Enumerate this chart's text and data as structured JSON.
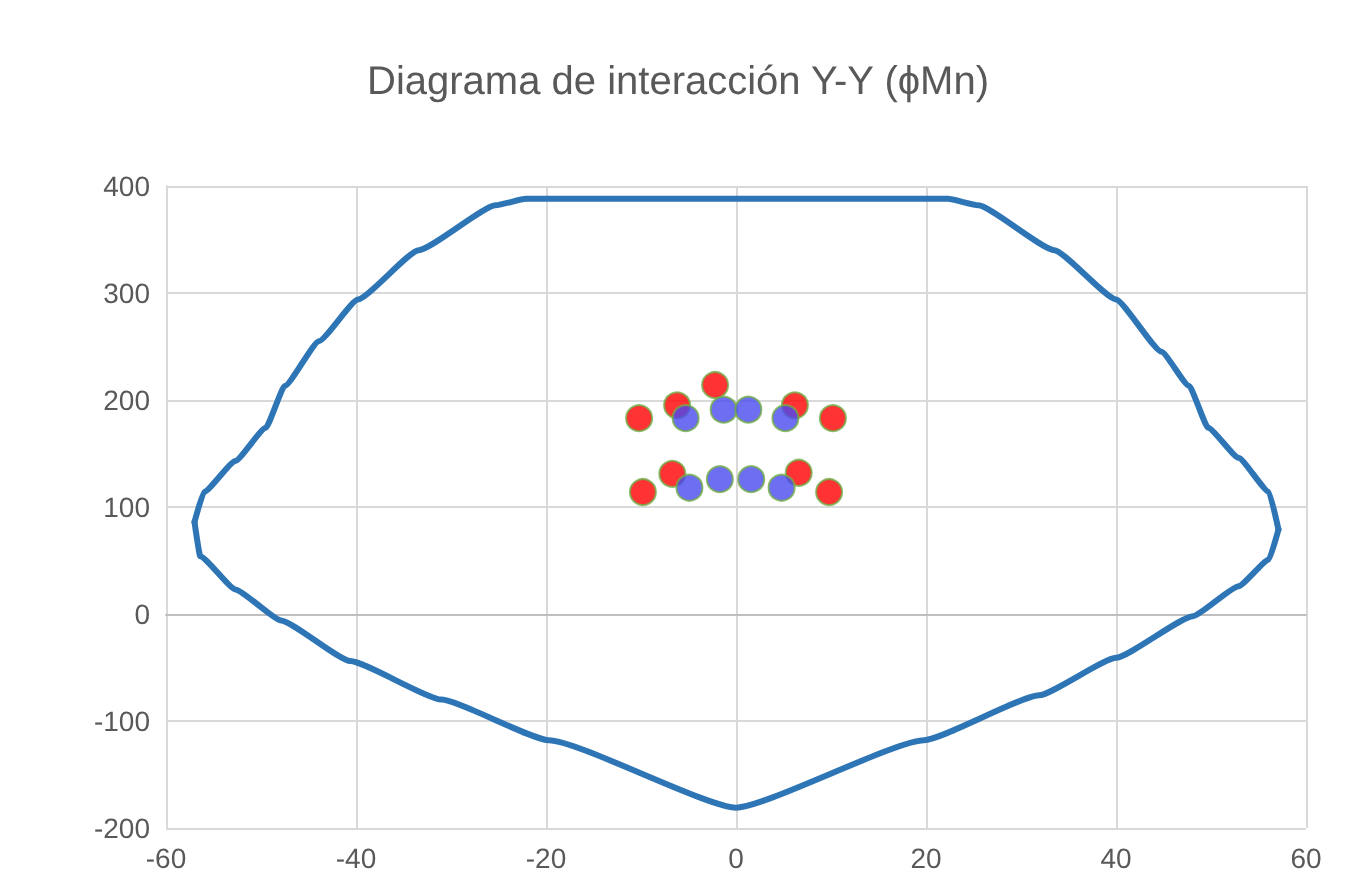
{
  "chart_data": {
    "type": "scatter",
    "title": "Diagrama de interacción Y-Y (ϕMn)",
    "xlim": [
      -60,
      60
    ],
    "xticks": [
      -60,
      -40,
      -20,
      0,
      20,
      40,
      60
    ],
    "ylim": [
      -200,
      400
    ],
    "yticks": [
      -200,
      -100,
      0,
      100,
      200,
      300,
      400
    ],
    "grid": true,
    "marker": "circle",
    "series": [
      {
        "type": "line",
        "color": "#2e75b6",
        "marker": "none",
        "x": [
          -57,
          -56,
          -52.7,
          -49.5,
          -47.5,
          -43.9,
          -39.8,
          -33.4,
          -25.3,
          -22.1,
          0,
          22.3,
          25.5,
          33.5,
          40,
          44.8,
          47.7,
          49.7,
          52.9,
          56.1,
          57.1
        ],
        "values": [
          86,
          114,
          143,
          174,
          213,
          255,
          294,
          340,
          382,
          388,
          388,
          388,
          382,
          340,
          294,
          245,
          213,
          174,
          146,
          114,
          79
        ]
      },
      {
        "type": "line",
        "color": "#2e75b6",
        "marker": "none",
        "x": [
          -57,
          -56.4,
          -52.7,
          -47.9,
          -40.6,
          -31,
          -19.7,
          0,
          19.8,
          31.9,
          40,
          48.1,
          52.9,
          56.1,
          57.1
        ],
        "values": [
          86,
          54,
          23,
          -6,
          -44,
          -80,
          -118,
          -181,
          -118,
          -76,
          -41,
          -2,
          26,
          51,
          79
        ]
      },
      {
        "color": "#ff0000",
        "x": [
          -10.2,
          -6.2,
          -2.2,
          6.2,
          10.2,
          -9.8,
          -6.7,
          6.6,
          9.8
        ],
        "values": [
          183,
          195,
          214,
          195,
          183,
          114,
          131,
          132,
          114
        ]
      },
      {
        "color": "#4a4af0",
        "x": [
          -5.3,
          -1.3,
          1.3,
          5.2,
          -4.9,
          -1.7,
          1.6,
          4.8
        ],
        "values": [
          183,
          191,
          191,
          183,
          118,
          126,
          126,
          118
        ]
      }
    ]
  }
}
